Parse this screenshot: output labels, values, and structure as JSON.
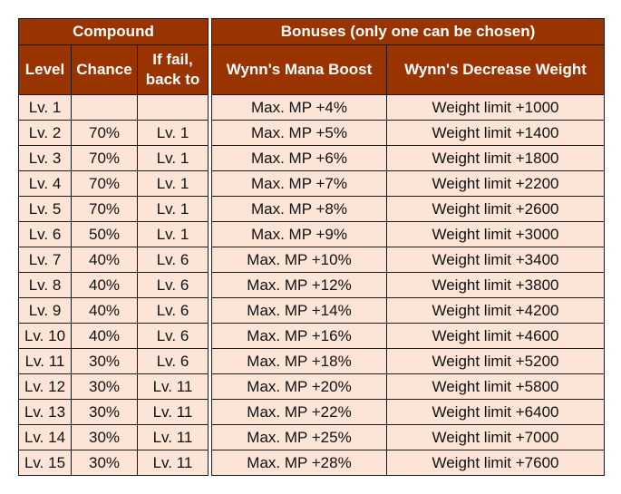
{
  "compound": {
    "title": "Compound",
    "headers": {
      "level": "Level",
      "chance": "Chance",
      "fail_line1": "If fail,",
      "fail_line2": "back to"
    },
    "rows": [
      {
        "level": "Lv. 1",
        "chance": "",
        "fail": ""
      },
      {
        "level": "Lv. 2",
        "chance": "70%",
        "fail": "Lv. 1"
      },
      {
        "level": "Lv. 3",
        "chance": "70%",
        "fail": "Lv. 1"
      },
      {
        "level": "Lv. 4",
        "chance": "70%",
        "fail": "Lv. 1"
      },
      {
        "level": "Lv. 5",
        "chance": "70%",
        "fail": "Lv. 1"
      },
      {
        "level": "Lv. 6",
        "chance": "50%",
        "fail": "Lv. 1"
      },
      {
        "level": "Lv. 7",
        "chance": "40%",
        "fail": "Lv. 6"
      },
      {
        "level": "Lv. 8",
        "chance": "40%",
        "fail": "Lv. 6"
      },
      {
        "level": "Lv. 9",
        "chance": "40%",
        "fail": "Lv. 6"
      },
      {
        "level": "Lv. 10",
        "chance": "40%",
        "fail": "Lv. 6"
      },
      {
        "level": "Lv. 11",
        "chance": "30%",
        "fail": "Lv. 6"
      },
      {
        "level": "Lv. 12",
        "chance": "30%",
        "fail": "Lv. 11"
      },
      {
        "level": "Lv. 13",
        "chance": "30%",
        "fail": "Lv. 11"
      },
      {
        "level": "Lv. 14",
        "chance": "30%",
        "fail": "Lv. 11"
      },
      {
        "level": "Lv. 15",
        "chance": "30%",
        "fail": "Lv. 11"
      }
    ]
  },
  "bonuses": {
    "title": "Bonuses (only one can be chosen)",
    "headers": {
      "mana": "Wynn's Mana Boost",
      "weight": "Wynn's Decrease Weight"
    },
    "rows": [
      {
        "mana": "Max. MP +4%",
        "weight": "Weight limit +1000"
      },
      {
        "mana": "Max. MP +5%",
        "weight": "Weight limit +1400"
      },
      {
        "mana": "Max. MP +6%",
        "weight": "Weight limit +1800"
      },
      {
        "mana": "Max. MP +7%",
        "weight": "Weight limit +2200"
      },
      {
        "mana": "Max. MP +8%",
        "weight": "Weight limit +2600"
      },
      {
        "mana": "Max. MP +9%",
        "weight": "Weight limit +3000"
      },
      {
        "mana": "Max. MP +10%",
        "weight": "Weight limit +3400"
      },
      {
        "mana": "Max. MP +12%",
        "weight": "Weight limit +3800"
      },
      {
        "mana": "Max. MP +14%",
        "weight": "Weight limit +4200"
      },
      {
        "mana": "Max. MP +16%",
        "weight": "Weight limit +4600"
      },
      {
        "mana": "Max. MP +18%",
        "weight": "Weight limit +5200"
      },
      {
        "mana": "Max. MP +20%",
        "weight": "Weight limit +5800"
      },
      {
        "mana": "Max. MP +22%",
        "weight": "Weight limit +6400"
      },
      {
        "mana": "Max. MP +25%",
        "weight": "Weight limit +7000"
      },
      {
        "mana": "Max. MP +28%",
        "weight": "Weight limit +7600"
      }
    ]
  },
  "colors": {
    "header_bg": "#993300",
    "header_text": "#ffffff",
    "cell_bg": "#fce4d6",
    "border": "#1a1a1a"
  }
}
